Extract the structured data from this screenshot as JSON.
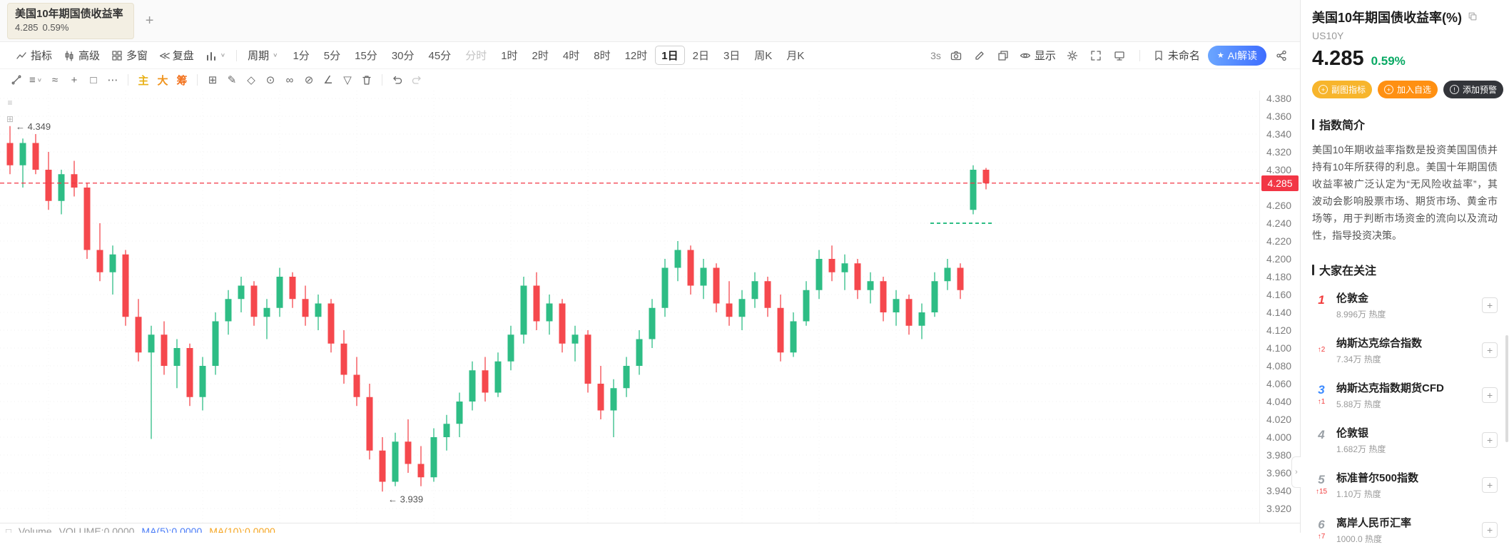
{
  "colors": {
    "up": "#2ebd85",
    "down": "#f5484d",
    "price_line": "#f23645",
    "change_green": "#09a964",
    "ai_badge_gradient": [
      "#6ba6ff",
      "#3e6dff"
    ],
    "button_gold": "#f7b52c",
    "button_orange": "#ff9012",
    "button_dark": "#33353a",
    "rank_hot": "#f23c3c"
  },
  "icons": {
    "tab_add": "+",
    "rewind": "≪",
    "caret": "∨",
    "pencil": "✎",
    "lines": "≡",
    "wave": "≈",
    "crosshair": "+",
    "rectangle": "□",
    "more": "⋯",
    "grid": "⊞",
    "diamond": "◇",
    "target": "⊙",
    "infinity": "∞",
    "slash": "⊘",
    "angle": "∠",
    "funnel": "▽",
    "left_tool_top": "≡",
    "left_tool_bottom": "⊞",
    "volume_toggle": "□",
    "watch_add": "+",
    "button_plus": "+",
    "button_alert": "!",
    "star": "★",
    "chevron_right": "›"
  },
  "tab": {
    "title": "美国10年期国债收益率",
    "price": "4.285",
    "change": "0.59%"
  },
  "toolbar": {
    "left_items": [
      "指标",
      "高级",
      "多窗",
      "复盘"
    ],
    "period_label": "周期",
    "timeframes": [
      "1分",
      "5分",
      "15分",
      "30分",
      "45分",
      "分时",
      "1时",
      "2时",
      "4时",
      "8时",
      "12时",
      "1日",
      "2日",
      "3日",
      "周K",
      "月K"
    ],
    "selected_timeframe": "1日",
    "countdown": "3s",
    "display_label": "显示",
    "layout_name": "未命名",
    "ai_badge": "AI解读"
  },
  "drawbar": {
    "tools": [
      {
        "label": "主",
        "color": "#e8b016"
      },
      {
        "label": "大",
        "color": "#f0941d"
      },
      {
        "label": "筹",
        "color": "#f2711c"
      }
    ]
  },
  "volume_pane": {
    "name": "Volume",
    "volume": "VOLUME:0.0000",
    "ma5": "MA(5):0.0000",
    "ma10": "MA(10):0.0000"
  },
  "chart_data": {
    "type": "candlestick",
    "symbol": "US10Y",
    "title": "美国10年期国债收益率",
    "timeframe": "1日",
    "up_color": "#2ebd85",
    "down_color": "#f5484d",
    "ylim": [
      3.92,
      4.385
    ],
    "y_ticks": [
      "4.380",
      "4.360",
      "4.340",
      "4.320",
      "4.300",
      "4.260",
      "4.240",
      "4.220",
      "4.200",
      "4.180",
      "4.160",
      "4.140",
      "4.120",
      "4.100",
      "4.080",
      "4.060",
      "4.040",
      "4.020",
      "4.000",
      "3.980",
      "3.960",
      "3.940",
      "3.920"
    ],
    "last_price": "4.285",
    "last_price_color": "#f23645",
    "high_annotation": {
      "text": "4.349",
      "candle": 0
    },
    "low_annotation": {
      "text": "3.939",
      "candle": 29
    },
    "prev_close_mark": {
      "value": 4.24
    },
    "candles": [
      [
        4.33,
        4.349,
        4.295,
        4.305
      ],
      [
        4.305,
        4.335,
        4.28,
        4.33
      ],
      [
        4.33,
        4.34,
        4.295,
        4.3
      ],
      [
        4.3,
        4.32,
        4.255,
        4.265
      ],
      [
        4.265,
        4.3,
        4.25,
        4.295
      ],
      [
        4.295,
        4.31,
        4.27,
        4.28
      ],
      [
        4.28,
        4.285,
        4.2,
        4.21
      ],
      [
        4.21,
        4.24,
        4.175,
        4.185
      ],
      [
        4.185,
        4.215,
        4.16,
        4.205
      ],
      [
        4.205,
        4.21,
        4.125,
        4.135
      ],
      [
        4.135,
        4.155,
        4.085,
        4.095
      ],
      [
        4.095,
        4.125,
        3.998,
        4.115
      ],
      [
        4.115,
        4.13,
        4.07,
        4.08
      ],
      [
        4.08,
        4.11,
        4.055,
        4.1
      ],
      [
        4.1,
        4.105,
        4.035,
        4.045
      ],
      [
        4.045,
        4.09,
        4.03,
        4.08
      ],
      [
        4.08,
        4.14,
        4.07,
        4.13
      ],
      [
        4.13,
        4.165,
        4.115,
        4.155
      ],
      [
        4.155,
        4.18,
        4.14,
        4.17
      ],
      [
        4.17,
        4.175,
        4.125,
        4.135
      ],
      [
        4.135,
        4.155,
        4.11,
        4.145
      ],
      [
        4.145,
        4.19,
        4.135,
        4.18
      ],
      [
        4.18,
        4.185,
        4.145,
        4.155
      ],
      [
        4.155,
        4.17,
        4.125,
        4.135
      ],
      [
        4.135,
        4.16,
        4.12,
        4.15
      ],
      [
        4.15,
        4.155,
        4.095,
        4.105
      ],
      [
        4.105,
        4.12,
        4.06,
        4.07
      ],
      [
        4.07,
        4.09,
        4.035,
        4.045
      ],
      [
        4.045,
        4.06,
        3.975,
        3.985
      ],
      [
        3.985,
        4.0,
        3.939,
        3.95
      ],
      [
        3.95,
        4.005,
        3.945,
        3.995
      ],
      [
        3.995,
        4.02,
        3.96,
        3.97
      ],
      [
        3.97,
        3.99,
        3.945,
        3.955
      ],
      [
        3.955,
        4.01,
        3.95,
        4.0
      ],
      [
        4.0,
        4.025,
        3.985,
        4.015
      ],
      [
        4.015,
        4.05,
        4.0,
        4.04
      ],
      [
        4.04,
        4.085,
        4.03,
        4.075
      ],
      [
        4.075,
        4.09,
        4.04,
        4.05
      ],
      [
        4.05,
        4.095,
        4.045,
        4.085
      ],
      [
        4.085,
        4.125,
        4.075,
        4.115
      ],
      [
        4.115,
        4.18,
        4.105,
        4.17
      ],
      [
        4.17,
        4.185,
        4.12,
        4.13
      ],
      [
        4.13,
        4.16,
        4.115,
        4.15
      ],
      [
        4.15,
        4.155,
        4.095,
        4.105
      ],
      [
        4.105,
        4.125,
        4.085,
        4.115
      ],
      [
        4.115,
        4.12,
        4.05,
        4.06
      ],
      [
        4.06,
        4.08,
        4.02,
        4.03
      ],
      [
        4.03,
        4.065,
        4.0,
        4.055
      ],
      [
        4.055,
        4.09,
        4.045,
        4.08
      ],
      [
        4.08,
        4.12,
        4.07,
        4.11
      ],
      [
        4.11,
        4.155,
        4.1,
        4.145
      ],
      [
        4.145,
        4.2,
        4.135,
        4.19
      ],
      [
        4.19,
        4.22,
        4.175,
        4.21
      ],
      [
        4.21,
        4.215,
        4.16,
        4.17
      ],
      [
        4.17,
        4.2,
        4.155,
        4.19
      ],
      [
        4.19,
        4.195,
        4.14,
        4.15
      ],
      [
        4.15,
        4.175,
        4.125,
        4.135
      ],
      [
        4.135,
        4.165,
        4.12,
        4.155
      ],
      [
        4.155,
        4.185,
        4.145,
        4.175
      ],
      [
        4.175,
        4.18,
        4.135,
        4.145
      ],
      [
        4.145,
        4.16,
        4.085,
        4.095
      ],
      [
        4.095,
        4.14,
        4.09,
        4.13
      ],
      [
        4.13,
        4.175,
        4.125,
        4.165
      ],
      [
        4.165,
        4.21,
        4.155,
        4.2
      ],
      [
        4.2,
        4.215,
        4.175,
        4.185
      ],
      [
        4.185,
        4.205,
        4.165,
        4.195
      ],
      [
        4.195,
        4.2,
        4.155,
        4.165
      ],
      [
        4.165,
        4.185,
        4.15,
        4.175
      ],
      [
        4.175,
        4.18,
        4.13,
        4.14
      ],
      [
        4.14,
        4.165,
        4.125,
        4.155
      ],
      [
        4.155,
        4.16,
        4.115,
        4.125
      ],
      [
        4.125,
        4.15,
        4.11,
        4.14
      ],
      [
        4.14,
        4.185,
        4.135,
        4.175
      ],
      [
        4.175,
        4.2,
        4.165,
        4.19
      ],
      [
        4.19,
        4.195,
        4.155,
        4.165
      ],
      [
        4.255,
        4.305,
        4.25,
        4.3
      ],
      [
        4.3,
        4.302,
        4.278,
        4.285
      ]
    ]
  },
  "panel": {
    "title": "美国10年期国债收益率(%)",
    "symbol": "US10Y",
    "price": "4.285",
    "change": "0.59%",
    "buttons": [
      "副图指标",
      "加入自选",
      "添加预警"
    ],
    "section_intro_title": "指数简介",
    "intro_text": "美国10年期收益率指数是投资美国国债并持有10年所获得的利息。美国十年期国债收益率被广泛认定为“无风险收益率”，其波动会影响股票市场、期货市场、黄金市场等，用于判断市场资金的流向以及流动性，指导投资决策。",
    "section_watch_title": "大家在关注",
    "watchlist": [
      {
        "rank": "1",
        "rank_color": "#f23c3c",
        "change": "",
        "name": "伦敦金",
        "heat": "8.996万 热度"
      },
      {
        "rank": "2",
        "rank_color": "#f59a23",
        "change": "↑2",
        "name": "纳斯达克综合指数",
        "heat": "7.34万 热度"
      },
      {
        "rank": "3",
        "rank_color": "#3f8cff",
        "change": "↑1",
        "name": "纳斯达克指数期货CFD",
        "heat": "5.88万 热度"
      },
      {
        "rank": "4",
        "rank_color": "#9aa0a6",
        "change": "",
        "name": "伦敦银",
        "heat": "1.682万 热度"
      },
      {
        "rank": "5",
        "rank_color": "#9aa0a6",
        "change": "↑15",
        "name": "标准普尔500指数",
        "heat": "1.10万 热度"
      },
      {
        "rank": "6",
        "rank_color": "#9aa0a6",
        "change": "↑7",
        "name": "离岸人民币汇率",
        "heat": "1000.0 热度"
      }
    ]
  }
}
